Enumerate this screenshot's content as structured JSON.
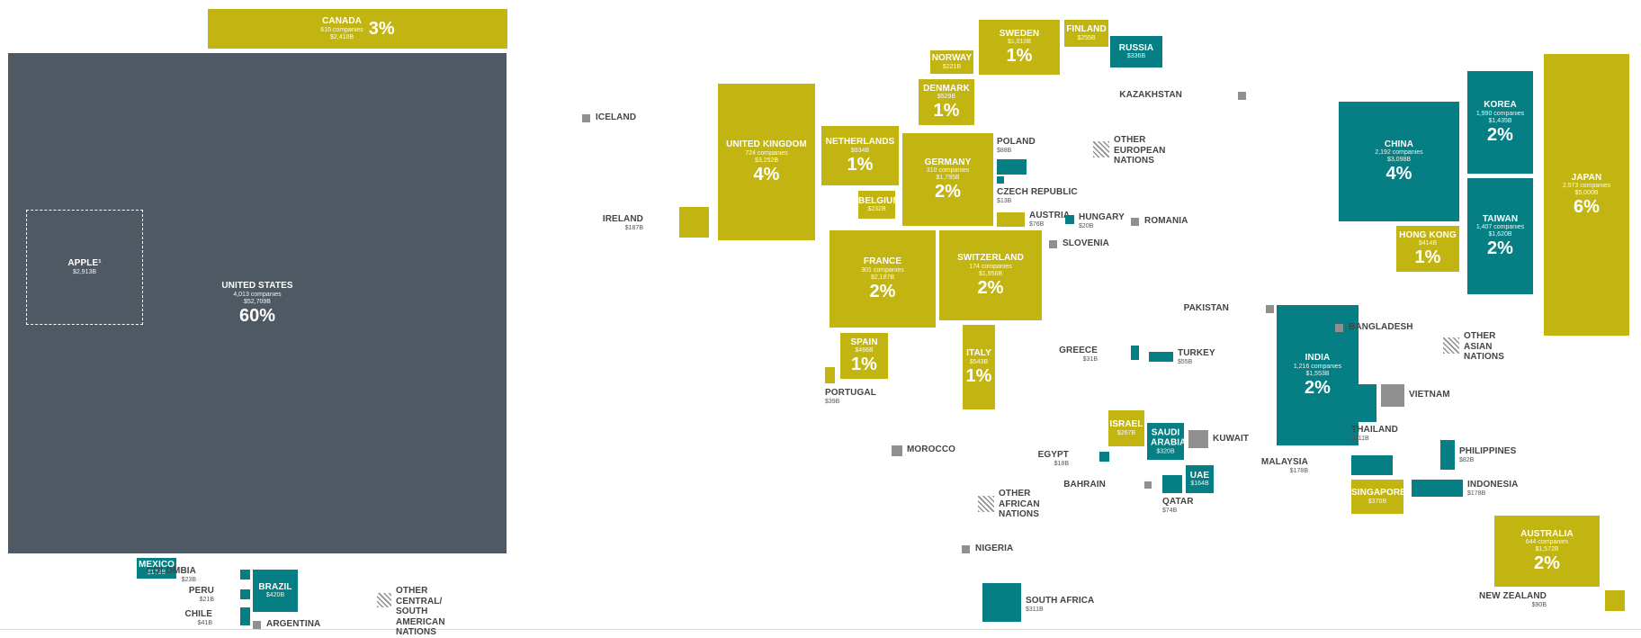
{
  "chart_data": {
    "type": "treemap-cartogram",
    "colors": {
      "large": "#c2b512",
      "medium": "#057f83",
      "small": "#8f8f8f",
      "united_states": "#4f5963",
      "other_nations": "hatched"
    },
    "regions": [
      {
        "id": "canada",
        "name": "CANADA",
        "companies": "616 companies",
        "value": "$2,410B",
        "pct": "3%"
      },
      {
        "id": "us",
        "name": "UNITED STATES",
        "companies": "4,013 companies",
        "value": "$52,709B",
        "pct": "60%"
      },
      {
        "id": "apple",
        "name": "APPLE¹",
        "value": "$2,913B"
      },
      {
        "id": "mexico",
        "name": "MEXICO",
        "value": "$178B"
      },
      {
        "id": "colombia",
        "name": "COLOMBIA",
        "value": "$23B"
      },
      {
        "id": "peru",
        "name": "PERU",
        "value": "$21B"
      },
      {
        "id": "chile",
        "name": "CHILE",
        "value": "$41B"
      },
      {
        "id": "brazil",
        "name": "BRAZIL",
        "value": "$420B"
      },
      {
        "id": "argentina",
        "name": "ARGENTINA",
        "value": ""
      },
      {
        "id": "other_csa",
        "name": "OTHER CENTRAL/ SOUTH AMERICAN NATIONS",
        "value": ""
      },
      {
        "id": "iceland",
        "name": "ICELAND",
        "value": ""
      },
      {
        "id": "ireland",
        "name": "IRELAND",
        "value": "$187B"
      },
      {
        "id": "uk",
        "name": "UNITED KINGDOM",
        "companies": "724 companies",
        "value": "$3,252B",
        "pct": "4%"
      },
      {
        "id": "netherlands",
        "name": "NETHERLANDS",
        "value": "$934B",
        "pct": "1%"
      },
      {
        "id": "belgium",
        "name": "BELGIUM",
        "value": "$232B"
      },
      {
        "id": "norway",
        "name": "NORWAY",
        "value": "$221B"
      },
      {
        "id": "sweden",
        "name": "SWEDEN",
        "value": "$1,010B",
        "pct": "1%"
      },
      {
        "id": "finland",
        "name": "FINLAND",
        "value": "$255B"
      },
      {
        "id": "denmark",
        "name": "DENMARK",
        "value": "$529B",
        "pct": "1%"
      },
      {
        "id": "germany",
        "name": "GERMANY",
        "companies": "310 companies",
        "value": "$1,795B",
        "pct": "2%"
      },
      {
        "id": "france",
        "name": "FRANCE",
        "companies": "301 companies",
        "value": "$2,187B",
        "pct": "2%"
      },
      {
        "id": "switzerland",
        "name": "SWITZERLAND",
        "companies": "174 companies",
        "value": "$1,956B",
        "pct": "2%"
      },
      {
        "id": "spain",
        "name": "SPAIN",
        "value": "$466B",
        "pct": "1%"
      },
      {
        "id": "portugal",
        "name": "PORTUGAL",
        "value": "$39B"
      },
      {
        "id": "italy",
        "name": "ITALY",
        "value": "$543B",
        "pct": "1%"
      },
      {
        "id": "poland",
        "name": "POLAND",
        "value": "$88B"
      },
      {
        "id": "czech",
        "name": "CZECH REPUBLIC",
        "value": "$13B"
      },
      {
        "id": "austria",
        "name": "AUSTRIA",
        "value": "$76B"
      },
      {
        "id": "hungary",
        "name": "HUNGARY",
        "value": "$20B"
      },
      {
        "id": "slovenia",
        "name": "SLOVENIA",
        "value": ""
      },
      {
        "id": "romania",
        "name": "ROMANIA",
        "value": ""
      },
      {
        "id": "russia",
        "name": "RUSSIA",
        "value": "$336B"
      },
      {
        "id": "other_eu",
        "name": "OTHER EUROPEAN NATIONS",
        "value": ""
      },
      {
        "id": "kazakhstan",
        "name": "KAZAKHSTAN",
        "value": ""
      },
      {
        "id": "greece",
        "name": "GREECE",
        "value": "$31B"
      },
      {
        "id": "turkey",
        "name": "TURKEY",
        "value": "$55B"
      },
      {
        "id": "morocco",
        "name": "MOROCCO",
        "value": ""
      },
      {
        "id": "israel",
        "name": "ISRAEL",
        "value": "$267B"
      },
      {
        "id": "saudi",
        "name": "SAUDI ARABIA",
        "value": "$320B"
      },
      {
        "id": "kuwait",
        "name": "KUWAIT",
        "value": ""
      },
      {
        "id": "egypt",
        "name": "EGYPT",
        "value": "$18B"
      },
      {
        "id": "bahrain",
        "name": "BAHRAIN",
        "value": ""
      },
      {
        "id": "qatar",
        "name": "QATAR",
        "value": "$74B"
      },
      {
        "id": "uae",
        "name": "UAE",
        "value": "$164B"
      },
      {
        "id": "other_af",
        "name": "OTHER AFRICAN NATIONS",
        "value": ""
      },
      {
        "id": "nigeria",
        "name": "NIGERIA",
        "value": ""
      },
      {
        "id": "south_africa",
        "name": "SOUTH AFRICA",
        "value": "$311B"
      },
      {
        "id": "pakistan",
        "name": "PAKISTAN",
        "value": ""
      },
      {
        "id": "india",
        "name": "INDIA",
        "companies": "1,216 companies",
        "value": "$1,553B",
        "pct": "2%"
      },
      {
        "id": "bangladesh",
        "name": "BANGLADESH",
        "value": ""
      },
      {
        "id": "china",
        "name": "CHINA",
        "companies": "2,192 companies",
        "value": "$3,098B",
        "pct": "4%"
      },
      {
        "id": "korea",
        "name": "KOREA",
        "companies": "1,990 companies",
        "value": "$1,435B",
        "pct": "2%"
      },
      {
        "id": "taiwan",
        "name": "TAIWAN",
        "companies": "1,407 companies",
        "value": "$1,620B",
        "pct": "2%"
      },
      {
        "id": "hongkong",
        "name": "HONG KONG",
        "value": "$414B",
        "pct": "1%"
      },
      {
        "id": "japan",
        "name": "JAPAN",
        "companies": "2,573 companies",
        "value": "$5,000B",
        "pct": "6%"
      },
      {
        "id": "other_asia",
        "name": "OTHER ASIAN NATIONS",
        "value": ""
      },
      {
        "id": "thailand",
        "name": "THAILAND",
        "value": "$211B"
      },
      {
        "id": "vietnam",
        "name": "VIETNAM",
        "value": ""
      },
      {
        "id": "malaysia",
        "name": "MALAYSIA",
        "value": "$178B"
      },
      {
        "id": "philippines",
        "name": "PHILIPPINES",
        "value": "$82B"
      },
      {
        "id": "singapore",
        "name": "SINGAPORE",
        "value": "$370B"
      },
      {
        "id": "indonesia",
        "name": "INDONESIA",
        "value": "$178B"
      },
      {
        "id": "australia",
        "name": "AUSTRALIA",
        "companies": "644 companies",
        "value": "$1,572B",
        "pct": "2%"
      },
      {
        "id": "newzealand",
        "name": "NEW ZEALAND",
        "value": "$90B"
      }
    ]
  }
}
